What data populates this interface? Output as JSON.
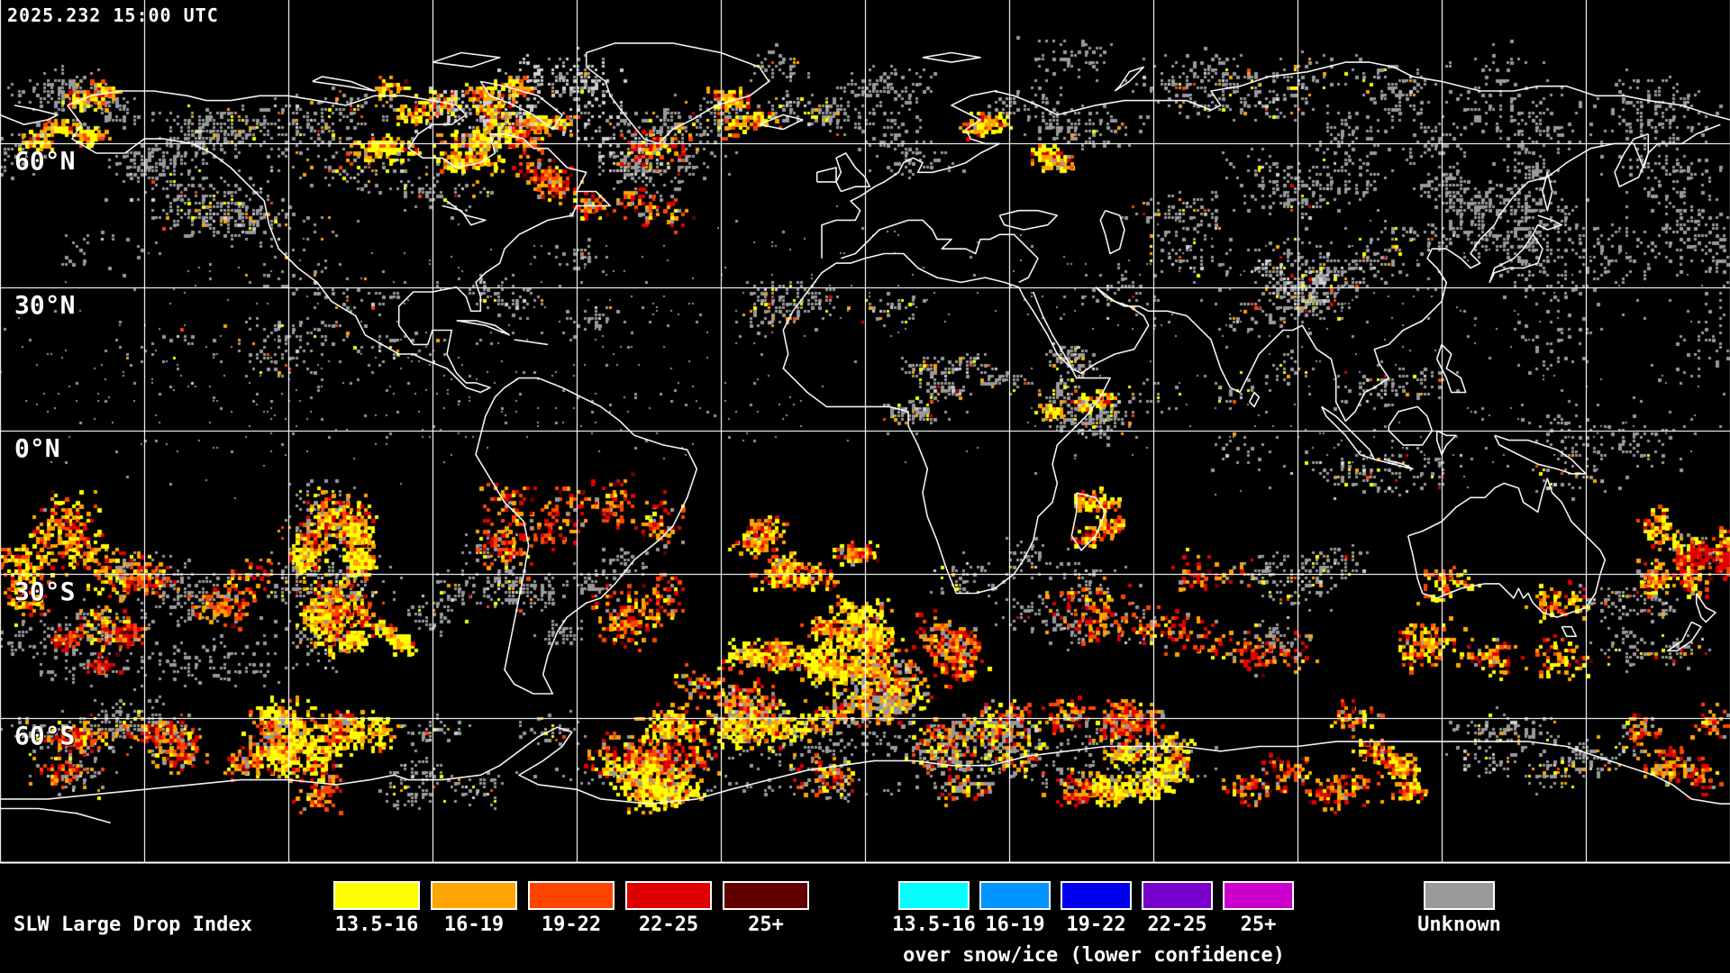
{
  "header": {
    "timestamp": "2025.232 15:00 UTC"
  },
  "map": {
    "grid_latitudes": [
      {
        "label": "60°N",
        "lat": 60
      },
      {
        "label": "30°N",
        "lat": 30
      },
      {
        "label": "0°N",
        "lat": 0
      },
      {
        "label": "30°S",
        "lat": -30
      },
      {
        "label": "60°S",
        "lat": -60
      }
    ],
    "grid_longitude_step_deg": 30,
    "background_color": "#000000",
    "coastline_color": "#ffffff",
    "gridline_color": "#ffffff"
  },
  "legend": {
    "title": "SLW Large Drop Index",
    "groups": [
      {
        "id": "normal",
        "items": [
          {
            "label": "13.5-16",
            "color": "#ffff00"
          },
          {
            "label": "16-19",
            "color": "#ffa500"
          },
          {
            "label": "19-22",
            "color": "#ff4500"
          },
          {
            "label": "22-25",
            "color": "#e00000"
          },
          {
            "label": "25+",
            "color": "#620000"
          }
        ]
      },
      {
        "id": "snow-ice",
        "caption": "over snow/ice (lower confidence)",
        "items": [
          {
            "label": "13.5-16",
            "color": "#00ffff"
          },
          {
            "label": "16-19",
            "color": "#0095ff"
          },
          {
            "label": "19-22",
            "color": "#0000ee"
          },
          {
            "label": "22-25",
            "color": "#7700cc"
          },
          {
            "label": "25+",
            "color": "#cc00cc"
          }
        ]
      },
      {
        "id": "unknown",
        "items": [
          {
            "label": "Unknown",
            "color": "#999999"
          }
        ]
      }
    ]
  }
}
